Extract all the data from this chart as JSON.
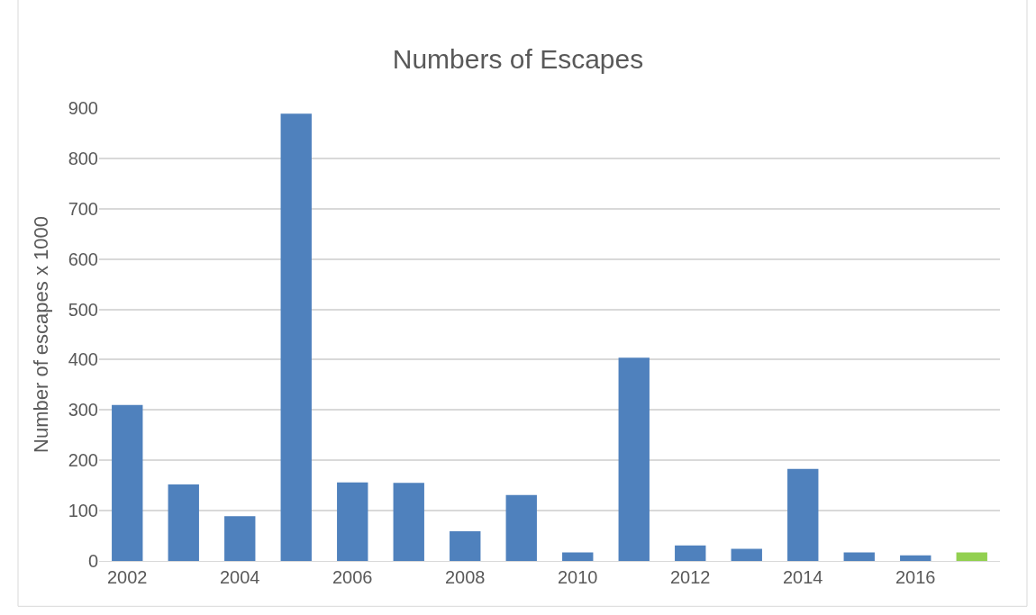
{
  "chart_data": {
    "type": "bar",
    "title": "Numbers of Escapes",
    "ylabel": "Number of escapes x 1000",
    "categories": [
      "2002",
      null,
      "2004",
      null,
      "2006",
      null,
      "2008",
      null,
      "2010",
      null,
      "2012",
      null,
      "2014",
      null,
      "2016",
      null
    ],
    "values": [
      310,
      152,
      89,
      889,
      156,
      155,
      59,
      131,
      17,
      404,
      31,
      24,
      183,
      17,
      11,
      17
    ],
    "colors": [
      "#4f81bd",
      "#4f81bd",
      "#4f81bd",
      "#4f81bd",
      "#4f81bd",
      "#4f81bd",
      "#4f81bd",
      "#4f81bd",
      "#4f81bd",
      "#4f81bd",
      "#4f81bd",
      "#4f81bd",
      "#4f81bd",
      "#4f81bd",
      "#4f81bd",
      "#92d050"
    ],
    "ylim": [
      0,
      900
    ],
    "yticks": [
      0,
      100,
      200,
      300,
      400,
      500,
      600,
      700,
      800,
      900
    ],
    "grid": "y"
  }
}
